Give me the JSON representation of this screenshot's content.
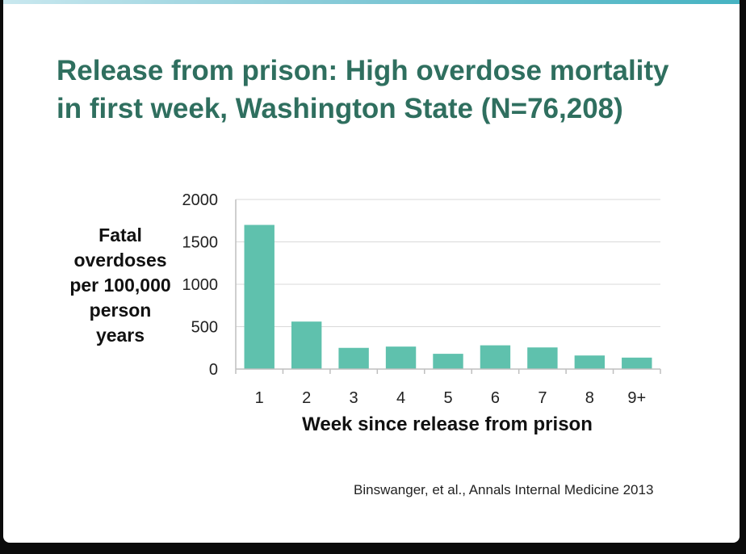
{
  "slide": {
    "title_line1": "Release from prison: High overdose mortality",
    "title_line2": "in first week, Washington State (N=76,208)",
    "citation": "Binswanger, et al.,  Annals Internal Medicine 2013"
  },
  "colors": {
    "title": "#2f6f5f",
    "bar": "#5fc1ad",
    "gridline": "#d9d9d9",
    "axis": "#bfbfbf",
    "accent_bar": "#46b3c2"
  },
  "chart_data": {
    "type": "bar",
    "title": "",
    "ylabel_lines": [
      "Fatal",
      "overdoses",
      "per 100,000",
      "person",
      "years"
    ],
    "xlabel": "Week since release from prison",
    "categories": [
      "1",
      "2",
      "3",
      "4",
      "5",
      "6",
      "7",
      "8",
      "9+"
    ],
    "values": [
      1700,
      560,
      250,
      265,
      180,
      280,
      255,
      160,
      135
    ],
    "ylim": [
      0,
      2000
    ],
    "yticks": [
      "0",
      "500",
      "1000",
      "1500",
      "2000"
    ],
    "ytick_values": [
      0,
      500,
      1000,
      1500,
      2000
    ],
    "grid": true,
    "legend": "none"
  }
}
